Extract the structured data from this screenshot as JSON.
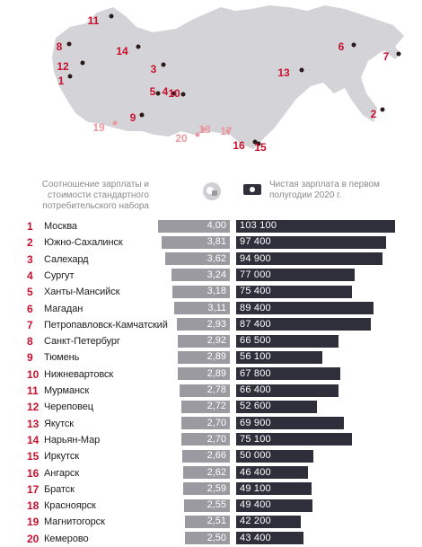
{
  "legend": {
    "ratio": "Соотношение зарплаты и стоимости стандартного потребительского набора",
    "salary": "Чистая зарплата в первом полугодии 2020 г."
  },
  "colors": {
    "accent": "#c8102e",
    "accent_light": "#e89aa0",
    "ratio_bar": "#9a9aa0",
    "salary_bar": "#2e2f3a",
    "map_land": "#d4d4d8"
  },
  "chart_data": {
    "type": "bar",
    "categories": [
      "Москва",
      "Южно-Сахалинск",
      "Салехард",
      "Сургут",
      "Ханты-Мансийск",
      "Магадан",
      "Петропавловск-Камчатский",
      "Санкт-Петербург",
      "Тюмень",
      "Нижневартовск",
      "Мурманск",
      "Череповец",
      "Якутск",
      "Нарьян-Мар",
      "Иркутск",
      "Ангарск",
      "Братск",
      "Красноярск",
      "Магнитогорск",
      "Кемерово"
    ],
    "ranks": [
      "1",
      "2",
      "3",
      "4",
      "5",
      "6",
      "7",
      "8",
      "9",
      "10",
      "11",
      "12",
      "13",
      "14",
      "15",
      "16",
      "17",
      "18",
      "19",
      "20"
    ],
    "series": [
      {
        "name": "Соотношение зарплаты и стоимости стандартного потребительского набора",
        "values": [
          4.0,
          3.81,
          3.62,
          3.24,
          3.18,
          3.11,
          2.93,
          2.92,
          2.89,
          2.89,
          2.78,
          2.72,
          2.7,
          2.7,
          2.66,
          2.62,
          2.59,
          2.55,
          2.51,
          2.5
        ],
        "labels": [
          "4,00",
          "3,81",
          "3,62",
          "3,24",
          "3,18",
          "3,11",
          "2,93",
          "2,92",
          "2,89",
          "2,89",
          "2,78",
          "2,72",
          "2,70",
          "2,70",
          "2,66",
          "2,62",
          "2,59",
          "2,55",
          "2,51",
          "2,50"
        ]
      },
      {
        "name": "Чистая зарплата в первом полугодии 2020 г.",
        "values": [
          103100,
          97400,
          94900,
          77000,
          75400,
          89400,
          87400,
          66500,
          56100,
          67800,
          66400,
          52600,
          69900,
          75100,
          50000,
          46400,
          49100,
          49400,
          42200,
          43400
        ],
        "labels": [
          "103 100",
          "97 400",
          "94 900",
          "77 000",
          "75 400",
          "89 400",
          "87 400",
          "66 500",
          "56 100",
          "67 800",
          "66 400",
          "52 600",
          "69 900",
          "75 100",
          "50 000",
          "46 400",
          "49 100",
          "49 400",
          "42 200",
          "43 400"
        ]
      }
    ]
  },
  "map_pins": [
    {
      "num": "1",
      "style": "dark"
    },
    {
      "num": "2",
      "style": "dark"
    },
    {
      "num": "3",
      "style": "dark"
    },
    {
      "num": "4",
      "style": "dark"
    },
    {
      "num": "5",
      "style": "dark"
    },
    {
      "num": "6",
      "style": "dark"
    },
    {
      "num": "7",
      "style": "dark"
    },
    {
      "num": "8",
      "style": "dark"
    },
    {
      "num": "9",
      "style": "dark"
    },
    {
      "num": "10",
      "style": "dark"
    },
    {
      "num": "11",
      "style": "dark"
    },
    {
      "num": "12",
      "style": "dark"
    },
    {
      "num": "13",
      "style": "dark"
    },
    {
      "num": "14",
      "style": "dark"
    },
    {
      "num": "15",
      "style": "dark"
    },
    {
      "num": "16",
      "style": "dark"
    },
    {
      "num": "17",
      "style": "light"
    },
    {
      "num": "18",
      "style": "light"
    },
    {
      "num": "19",
      "style": "light"
    },
    {
      "num": "20",
      "style": "light"
    }
  ]
}
